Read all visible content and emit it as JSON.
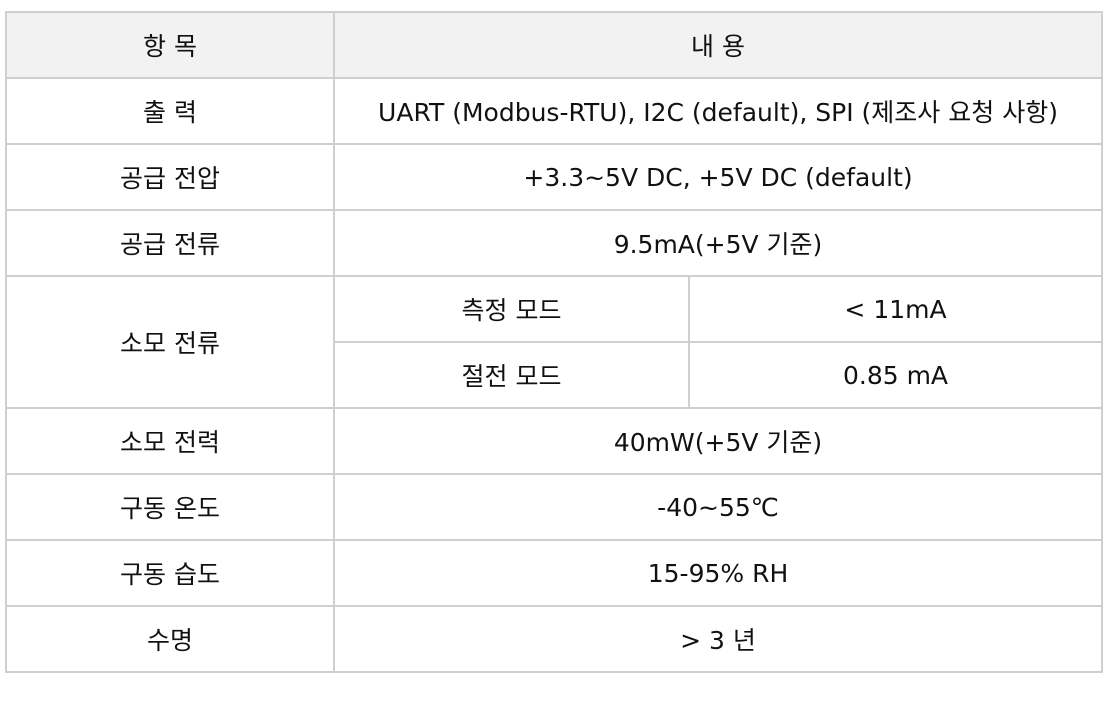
{
  "table": {
    "header": {
      "item": "항 목",
      "content": "내 용"
    },
    "output": {
      "item": "출 력",
      "value": "UART (Modbus-RTU), I2C (default), SPI (제조사 요청 사항)"
    },
    "supply_voltage": {
      "item": "공급 전압",
      "value": "+3.3~5V DC, +5V DC (default)"
    },
    "supply_current": {
      "item": "공급 전류",
      "value": "9.5mA(+5V 기준)"
    },
    "consumption_current": {
      "item": "소모 전류",
      "modes": [
        {
          "label": "측정 모드",
          "value": "< 11mA"
        },
        {
          "label": "절전 모드",
          "value": "0.85 mA"
        }
      ]
    },
    "power_consumption": {
      "item": "소모 전력",
      "value": "40mW(+5V 기준)"
    },
    "operating_temperature": {
      "item": "구동 온도",
      "value": "-40~55℃"
    },
    "operating_humidity": {
      "item": "구동 습도",
      "value": "15-95% RH"
    },
    "lifetime": {
      "item": "수명",
      "value": "> 3 년"
    }
  }
}
